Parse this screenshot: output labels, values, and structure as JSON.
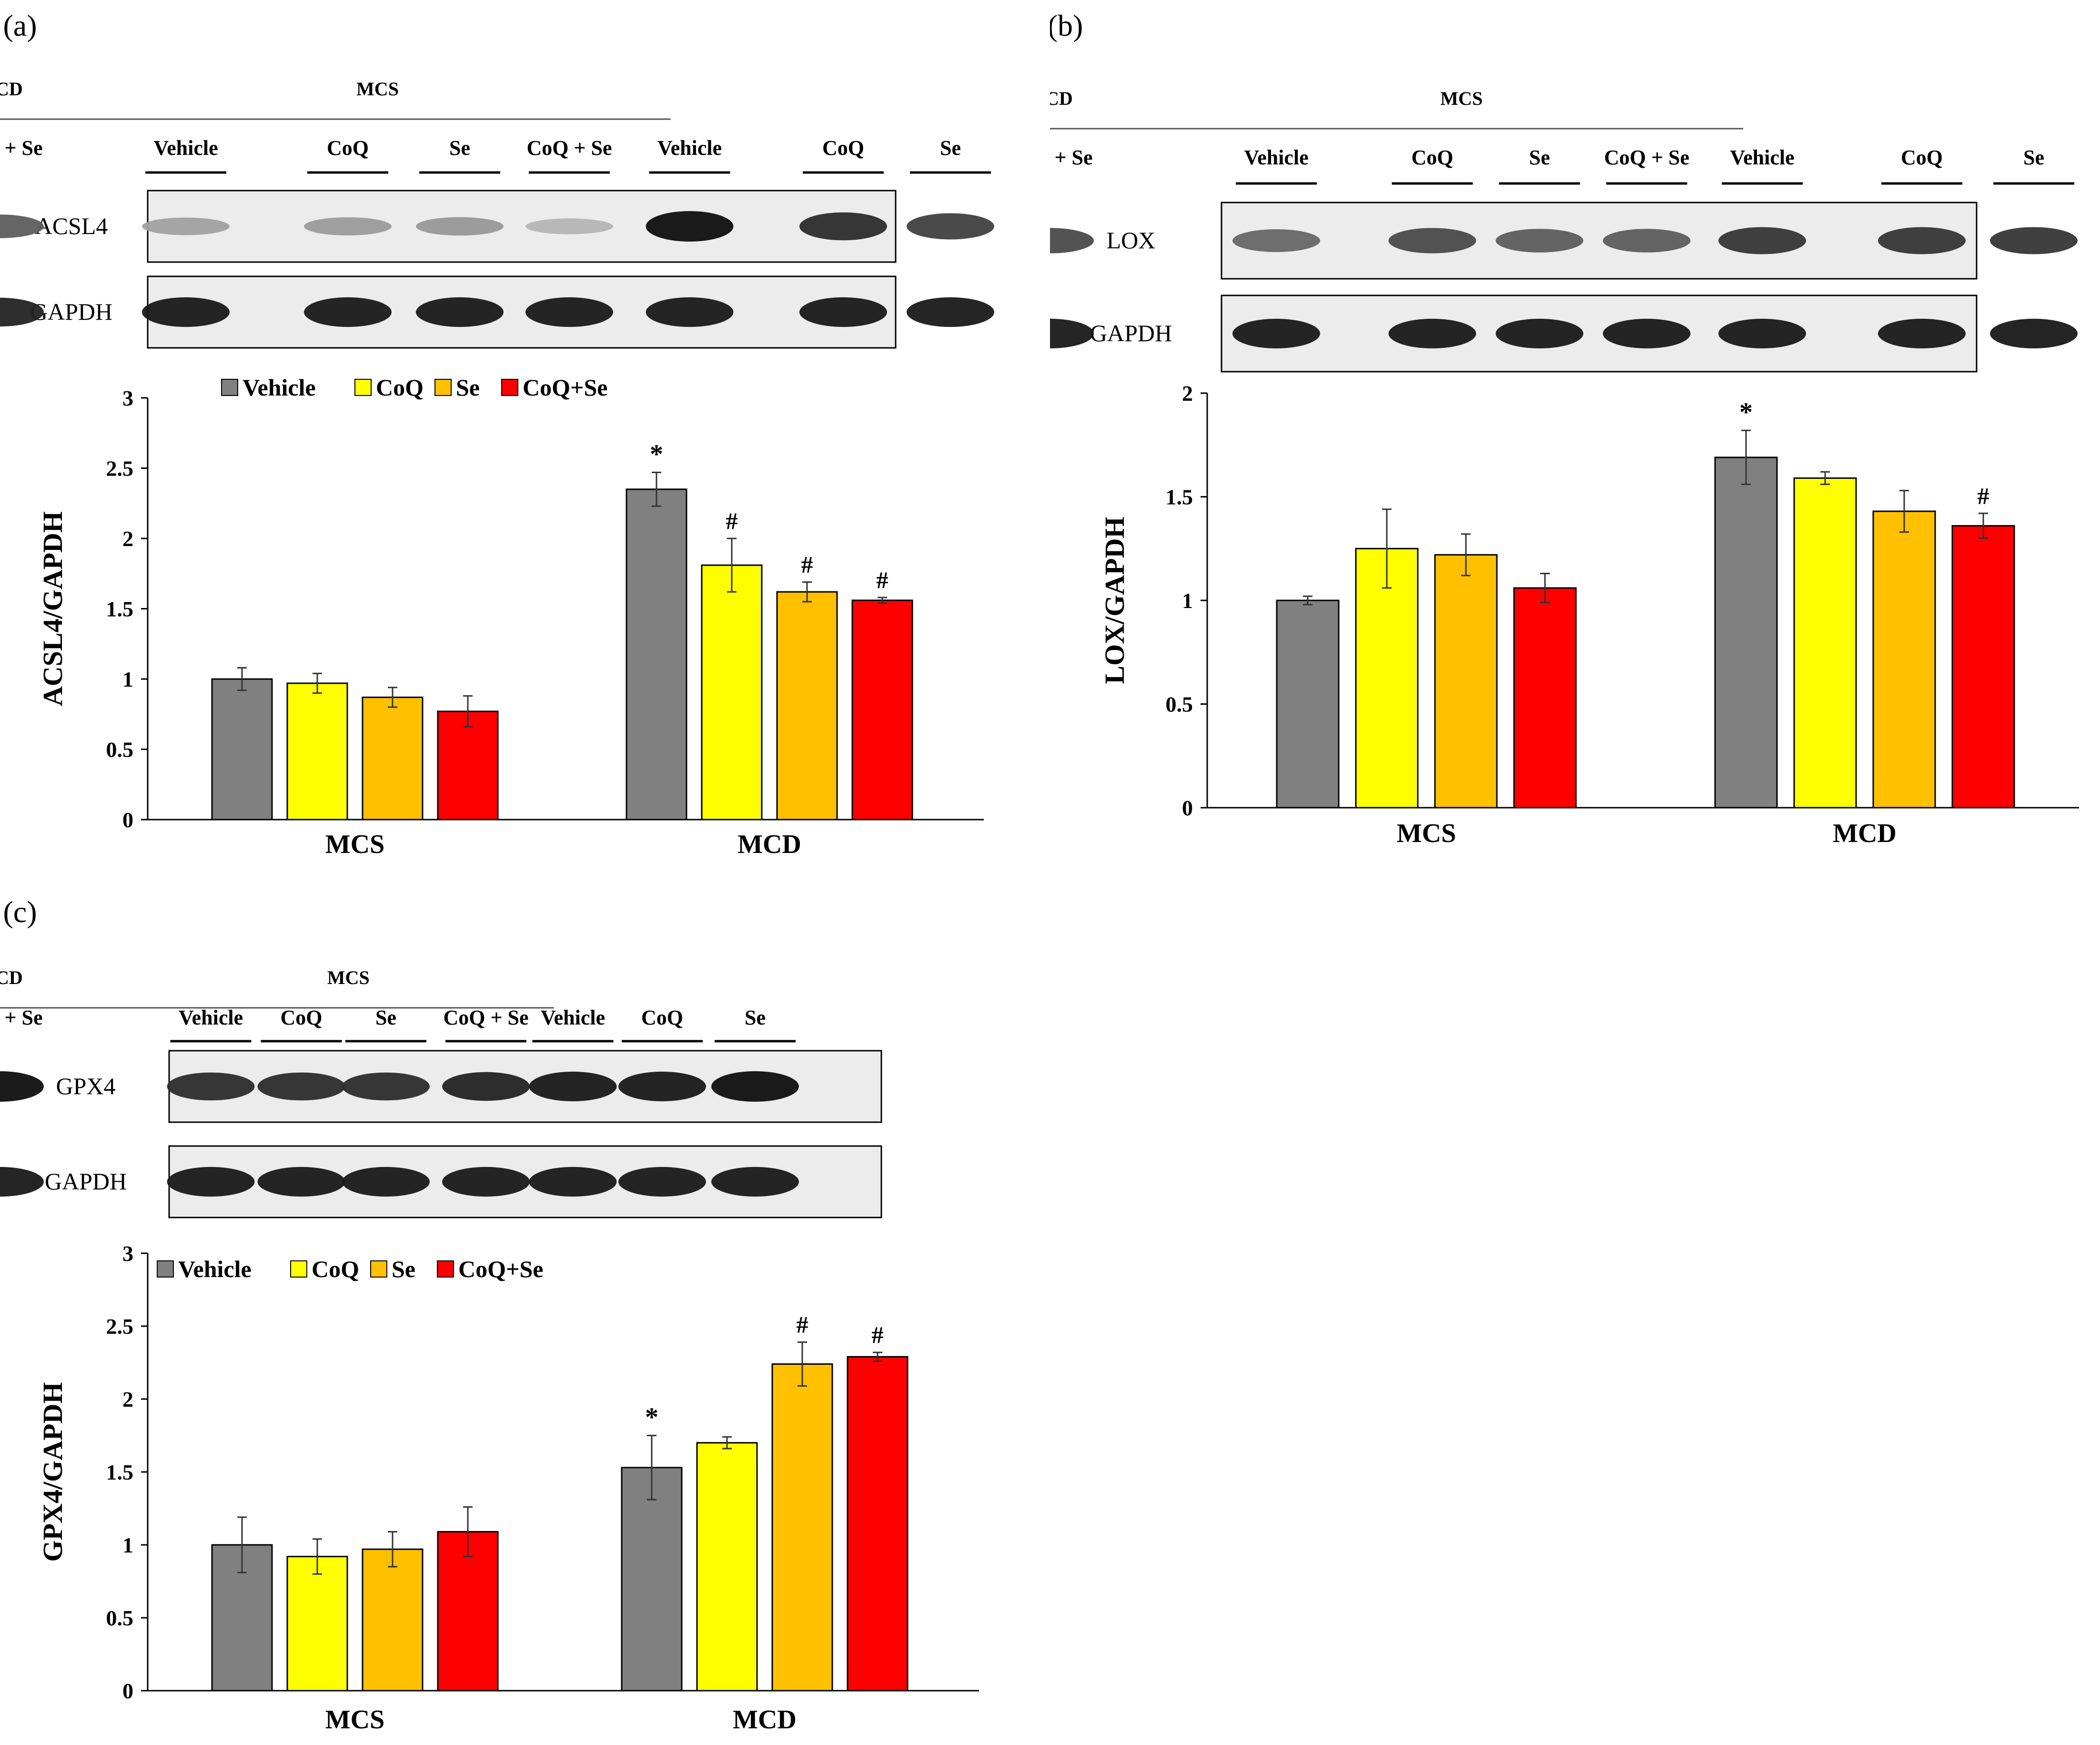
{
  "colors": {
    "Vehicle": "#808080",
    "CoQ": "#ffff00",
    "Se": "#ffc000",
    "CoQ+Se": "#ff0000",
    "axis": "#000000",
    "blot_bg": "#ececec",
    "band": "#1a1a1a"
  },
  "blot_header": {
    "groups": [
      "MCS",
      "MCD"
    ],
    "lanes": [
      "Vehicle",
      "CoQ",
      "Se",
      "CoQ + Se",
      "Vehicle",
      "CoQ",
      "Se",
      "CoQ + Se"
    ]
  },
  "chart_data": [
    {
      "panel_label": "(a)",
      "type": "bar",
      "blot_rows": [
        "ACSL4",
        "GAPDH"
      ],
      "blot_intensity": [
        [
          0.25,
          0.28,
          0.3,
          0.15,
          1.0,
          0.85,
          0.75,
          0.6
        ],
        [
          0.95,
          0.95,
          0.95,
          0.95,
          0.95,
          0.95,
          0.95,
          0.9
        ]
      ],
      "categories": [
        "MCS",
        "MCD"
      ],
      "ylabel": "ACSL4/GAPDH",
      "ylim": [
        0,
        3
      ],
      "yticks": [
        "0",
        "0.5",
        "1",
        "1.5",
        "2",
        "2.5",
        "3"
      ],
      "legend": [
        "Vehicle",
        "CoQ",
        "Se",
        "CoQ+Se"
      ],
      "series": [
        {
          "name": "Vehicle",
          "values": [
            1.0,
            2.35
          ],
          "errors": [
            0.08,
            0.12
          ],
          "marks": [
            "",
            "*"
          ]
        },
        {
          "name": "CoQ",
          "values": [
            0.97,
            1.81
          ],
          "errors": [
            0.07,
            0.19
          ],
          "marks": [
            "",
            "#"
          ]
        },
        {
          "name": "Se",
          "values": [
            0.87,
            1.62
          ],
          "errors": [
            0.07,
            0.07
          ],
          "marks": [
            "",
            "#"
          ]
        },
        {
          "name": "CoQ+Se",
          "values": [
            0.77,
            1.56
          ],
          "errors": [
            0.11,
            0.02
          ],
          "marks": [
            "",
            "#"
          ]
        }
      ]
    },
    {
      "panel_label": "(b)",
      "type": "bar",
      "blot_rows": [
        "LOX",
        "GAPDH"
      ],
      "blot_intensity": [
        [
          0.55,
          0.7,
          0.6,
          0.6,
          0.8,
          0.8,
          0.8,
          0.7
        ],
        [
          0.95,
          0.95,
          0.95,
          0.95,
          0.95,
          0.95,
          0.95,
          0.95
        ]
      ],
      "categories": [
        "MCS",
        "MCD"
      ],
      "ylabel": "LOX/GAPDH",
      "ylim": [
        0,
        2
      ],
      "yticks": [
        "0",
        "0.5",
        "1",
        "1.5",
        "2"
      ],
      "legend": [],
      "series": [
        {
          "name": "Vehicle",
          "values": [
            1.0,
            1.69
          ],
          "errors": [
            0.02,
            0.13
          ],
          "marks": [
            "",
            "*"
          ]
        },
        {
          "name": "CoQ",
          "values": [
            1.25,
            1.59
          ],
          "errors": [
            0.19,
            0.03
          ],
          "marks": [
            "",
            ""
          ]
        },
        {
          "name": "Se",
          "values": [
            1.22,
            1.43
          ],
          "errors": [
            0.1,
            0.1
          ],
          "marks": [
            "",
            ""
          ]
        },
        {
          "name": "CoQ+Se",
          "values": [
            1.06,
            1.36
          ],
          "errors": [
            0.07,
            0.06
          ],
          "marks": [
            "",
            "#"
          ]
        }
      ]
    },
    {
      "panel_label": "(c)",
      "type": "bar",
      "blot_rows": [
        "GPX4",
        "GAPDH"
      ],
      "blot_intensity": [
        [
          0.85,
          0.85,
          0.85,
          0.9,
          0.95,
          0.95,
          1.0,
          1.0
        ],
        [
          0.95,
          0.95,
          0.95,
          0.95,
          0.95,
          0.95,
          0.95,
          0.95
        ]
      ],
      "categories": [
        "MCS",
        "MCD"
      ],
      "ylabel": "GPX4/GAPDH",
      "ylim": [
        0,
        3
      ],
      "yticks": [
        "0",
        "0.5",
        "1",
        "1.5",
        "2",
        "2.5",
        "3"
      ],
      "legend": [
        "Vehicle",
        "CoQ",
        "Se",
        "CoQ+Se"
      ],
      "series": [
        {
          "name": "Vehicle",
          "values": [
            1.0,
            1.53
          ],
          "errors": [
            0.19,
            0.22
          ],
          "marks": [
            "",
            "*"
          ]
        },
        {
          "name": "CoQ",
          "values": [
            0.92,
            1.7
          ],
          "errors": [
            0.12,
            0.04
          ],
          "marks": [
            "",
            ""
          ]
        },
        {
          "name": "Se",
          "values": [
            0.97,
            2.24
          ],
          "errors": [
            0.12,
            0.15
          ],
          "marks": [
            "",
            "#"
          ]
        },
        {
          "name": "CoQ+Se",
          "values": [
            1.09,
            2.29
          ],
          "errors": [
            0.17,
            0.03
          ],
          "marks": [
            "",
            "#"
          ]
        }
      ]
    }
  ]
}
